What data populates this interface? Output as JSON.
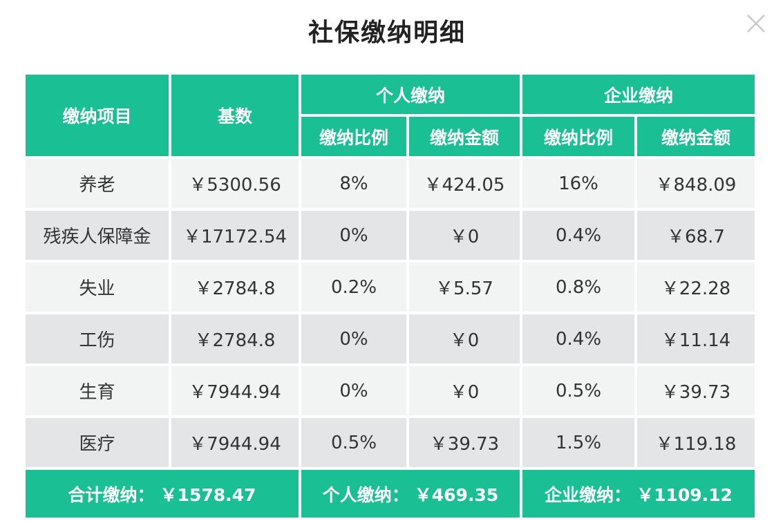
{
  "title": "社保缴纳明细",
  "header": {
    "item": "缴纳项目",
    "base": "基数",
    "personal_group": "个人缴纳",
    "company_group": "企业缴纳",
    "personal_rate": "缴纳比例",
    "personal_amount": "缴纳金额",
    "company_rate": "缴纳比例",
    "company_amount": "缴纳金额"
  },
  "rows": [
    {
      "item": "养老",
      "base": "￥5300.56",
      "personal_rate": "8%",
      "personal_amount": "￥424.05",
      "company_rate": "16%",
      "company_amount": "￥848.09"
    },
    {
      "item": "残疾人保障金",
      "base": "￥17172.54",
      "personal_rate": "0%",
      "personal_amount": "￥0",
      "company_rate": "0.4%",
      "company_amount": "￥68.7"
    },
    {
      "item": "失业",
      "base": "￥2784.8",
      "personal_rate": "0.2%",
      "personal_amount": "￥5.57",
      "company_rate": "0.8%",
      "company_amount": "￥22.28"
    },
    {
      "item": "工伤",
      "base": "￥2784.8",
      "personal_rate": "0%",
      "personal_amount": "￥0",
      "company_rate": "0.4%",
      "company_amount": "￥11.14"
    },
    {
      "item": "生育",
      "base": "￥7944.94",
      "personal_rate": "0%",
      "personal_amount": "￥0",
      "company_rate": "0.5%",
      "company_amount": "￥39.73"
    },
    {
      "item": "医疗",
      "base": "￥7944.94",
      "personal_rate": "0.5%",
      "personal_amount": "￥39.73",
      "company_rate": "1.5%",
      "company_amount": "￥119.18"
    }
  ],
  "totals": {
    "total_label": "合计缴纳：",
    "total_value": "￥1578.47",
    "personal_label": "个人缴纳：",
    "personal_value": "￥469.35",
    "company_label": "企业缴纳：",
    "company_value": "￥1109.12"
  },
  "colors": {
    "accent": "#1bbf94",
    "row_light": "#f2f4f4",
    "row_dark": "#e3e5e6"
  },
  "icons": {
    "close": "close-icon"
  }
}
